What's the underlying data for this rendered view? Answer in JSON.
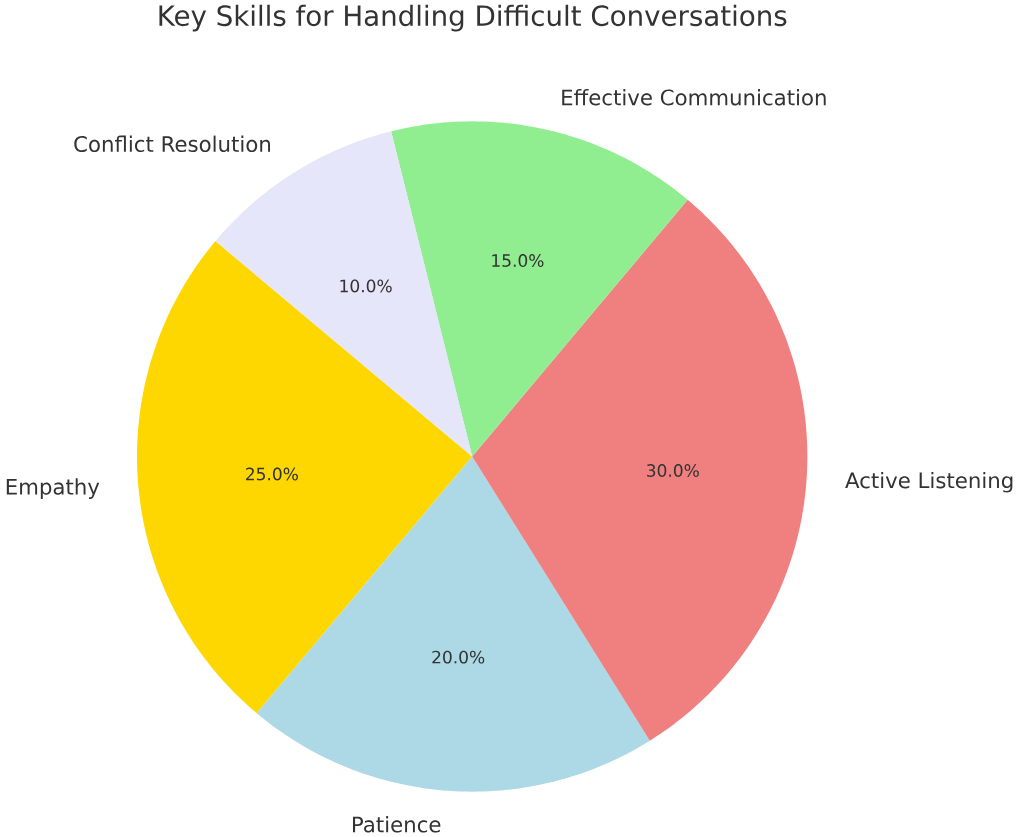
{
  "chart_data": {
    "type": "pie",
    "title": "Key Skills for Handling Difficult Conversations",
    "categories": [
      "Empathy",
      "Patience",
      "Active Listening",
      "Effective Communication",
      "Conflict Resolution"
    ],
    "values": [
      25,
      20,
      30,
      15,
      10
    ],
    "colors": [
      "#ffd700",
      "#add8e6",
      "#f08080",
      "#90ee90",
      "#e6e6fa"
    ],
    "value_labels": [
      "25.0%",
      "20.0%",
      "30.0%",
      "15.0%",
      "10.0%"
    ]
  }
}
